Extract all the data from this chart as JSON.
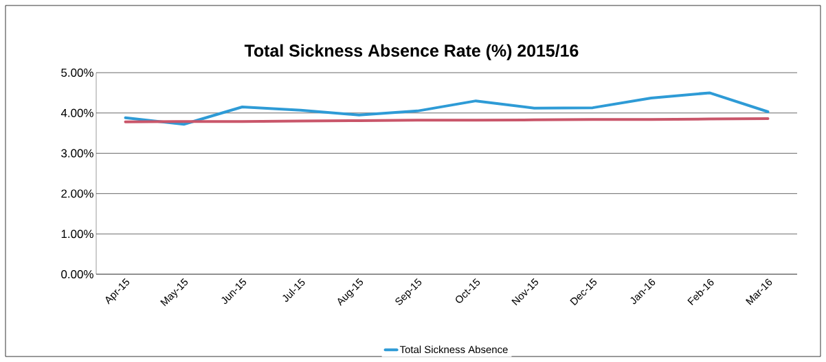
{
  "chart_data": {
    "type": "line",
    "title": "Total Sickness Absence Rate (%) 2015/16",
    "categories": [
      "Apr-15",
      "May-15",
      "Jun-15",
      "Jul-15",
      "Aug-15",
      "Sep-15",
      "Oct-15",
      "Nov-15",
      "Dec-15",
      "Jan-16",
      "Feb-16",
      "Mar-16"
    ],
    "series": [
      {
        "name": "Total Sickness Absence",
        "color": "#2e9bd6",
        "values": [
          3.88,
          3.72,
          4.15,
          4.07,
          3.95,
          4.05,
          4.3,
          4.12,
          4.13,
          4.37,
          4.5,
          4.03
        ]
      },
      {
        "color": "#c9566a",
        "values": [
          3.78,
          3.79,
          3.79,
          3.8,
          3.81,
          3.82,
          3.82,
          3.83,
          3.84,
          3.84,
          3.85,
          3.86
        ]
      }
    ],
    "ylim": [
      0,
      5
    ],
    "yticks": [
      {
        "value": 0,
        "label": "0.00%"
      },
      {
        "value": 1,
        "label": "1.00%"
      },
      {
        "value": 2,
        "label": "2.00%"
      },
      {
        "value": 3,
        "label": "3.00%"
      },
      {
        "value": 4,
        "label": "4.00%"
      },
      {
        "value": 5,
        "label": "5.00%"
      }
    ],
    "grid": "y",
    "legend": "bottom",
    "marker": "none",
    "line_style": "solid"
  }
}
